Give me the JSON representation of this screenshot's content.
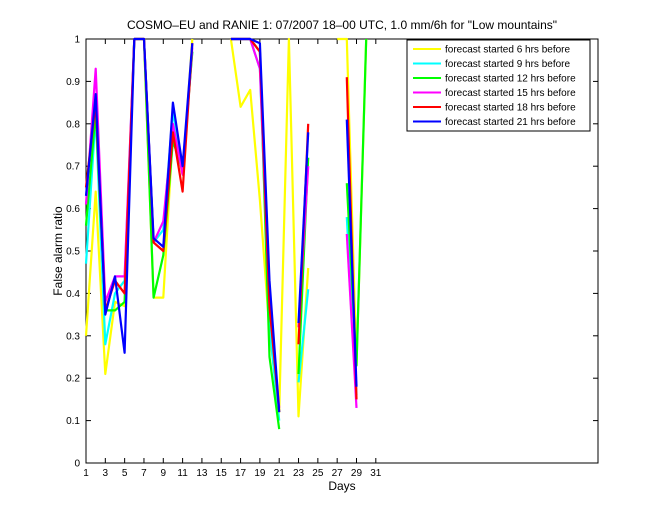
{
  "chart_data": {
    "type": "line",
    "title": "COSMO–EU and RANIE 1: 07/2007 18–00 UTC, 1.0 mm/6h for \"Low mountains\"",
    "xlabel": "Days",
    "ylabel": "False alarm ratio",
    "xlim": [
      1,
      54
    ],
    "ylim": [
      0,
      1
    ],
    "xticks": [
      1,
      3,
      5,
      7,
      9,
      11,
      13,
      15,
      17,
      19,
      21,
      23,
      25,
      27,
      29,
      31
    ],
    "yticks": [
      "0",
      "0.1",
      "0.2",
      "0.3",
      "0.4",
      "0.5",
      "0.6",
      "0.7",
      "0.8",
      "0.9",
      "1"
    ],
    "grid": false,
    "legend_position": "top-right",
    "series": [
      {
        "name": "forecast started  6 hrs before",
        "color": "#ffff00",
        "x": [
          1,
          2,
          3,
          4,
          5,
          6,
          7,
          8,
          9,
          10,
          11,
          12,
          null,
          16,
          17,
          18,
          19,
          20,
          21,
          22,
          23,
          24,
          null,
          27,
          28,
          29,
          30
        ],
        "y": [
          0.3,
          0.64,
          0.21,
          0.38,
          0.37,
          1.0,
          1.0,
          0.39,
          0.39,
          0.78,
          0.68,
          1.0,
          null,
          1.0,
          0.84,
          0.88,
          0.62,
          0.31,
          0.12,
          1.0,
          0.11,
          0.46,
          null,
          1.0,
          1.0,
          0.23,
          1.0
        ]
      },
      {
        "name": "forecast started  9 hrs before",
        "color": "#00ffff",
        "x": [
          1,
          2,
          3,
          4,
          5,
          6,
          7,
          8,
          9,
          10,
          11,
          12,
          null,
          16,
          17,
          18,
          19,
          20,
          21,
          null,
          23,
          24,
          null,
          28,
          29
        ],
        "y": [
          0.47,
          0.82,
          0.28,
          0.4,
          0.43,
          1.0,
          1.0,
          0.52,
          0.55,
          0.83,
          0.69,
          0.97,
          null,
          1.0,
          1.0,
          1.0,
          0.93,
          0.32,
          0.1,
          null,
          0.19,
          0.41,
          null,
          0.58,
          0.16
        ]
      },
      {
        "name": "forecast started 12 hrs before",
        "color": "#00ff00",
        "x": [
          1,
          2,
          3,
          4,
          5,
          6,
          7,
          8,
          9,
          10,
          11,
          12,
          null,
          16,
          17,
          18,
          19,
          20,
          21,
          null,
          23,
          24,
          null,
          28,
          29,
          30
        ],
        "y": [
          0.56,
          0.83,
          0.36,
          0.36,
          0.38,
          1.0,
          1.0,
          0.39,
          0.49,
          0.76,
          0.69,
          0.97,
          null,
          1.0,
          1.0,
          1.0,
          0.97,
          0.25,
          0.08,
          null,
          0.21,
          0.72,
          null,
          0.66,
          0.23,
          1.0
        ]
      },
      {
        "name": "forecast started 15 hrs before",
        "color": "#ff00ff",
        "x": [
          1,
          2,
          3,
          4,
          5,
          6,
          7,
          8,
          9,
          10,
          11,
          12,
          null,
          16,
          17,
          18,
          19,
          20,
          21,
          null,
          23,
          24,
          null,
          28,
          29
        ],
        "y": [
          0.61,
          0.93,
          0.38,
          0.44,
          0.44,
          1.0,
          1.0,
          0.52,
          0.57,
          0.8,
          0.68,
          0.98,
          null,
          1.0,
          1.0,
          1.0,
          0.93,
          0.37,
          0.13,
          null,
          0.32,
          0.7,
          null,
          0.54,
          0.13
        ]
      },
      {
        "name": "forecast started 18 hrs before",
        "color": "#ff0000",
        "x": [
          1,
          2,
          3,
          4,
          5,
          6,
          7,
          8,
          9,
          10,
          11,
          12,
          null,
          16,
          17,
          18,
          19,
          20,
          21,
          null,
          23,
          24,
          null,
          28,
          29
        ],
        "y": [
          0.65,
          0.85,
          0.36,
          0.43,
          0.4,
          1.0,
          1.0,
          0.52,
          0.5,
          0.78,
          0.64,
          0.99,
          null,
          1.0,
          1.0,
          1.0,
          0.97,
          0.37,
          0.12,
          null,
          0.28,
          0.8,
          null,
          0.91,
          0.15
        ]
      },
      {
        "name": "forecast started 21 hrs before",
        "color": "#0000ff",
        "x": [
          1,
          2,
          3,
          4,
          5,
          6,
          7,
          8,
          9,
          10,
          11,
          12,
          null,
          16,
          17,
          18,
          19,
          20,
          21,
          null,
          23,
          24,
          null,
          28,
          29
        ],
        "y": [
          0.63,
          0.87,
          0.35,
          0.44,
          0.26,
          1.0,
          1.0,
          0.53,
          0.51,
          0.85,
          0.7,
          0.99,
          null,
          1.0,
          1.0,
          1.0,
          0.99,
          0.43,
          0.12,
          null,
          0.33,
          0.78,
          null,
          0.81,
          0.18
        ]
      }
    ]
  }
}
